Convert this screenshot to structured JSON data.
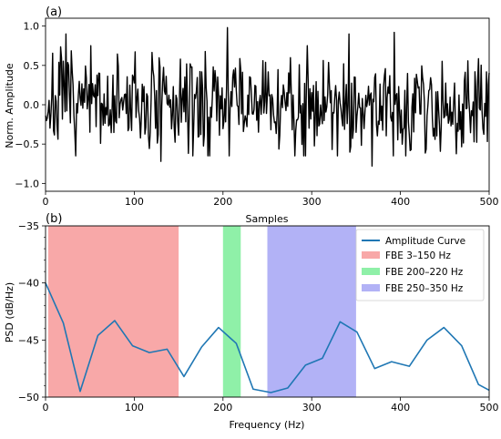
{
  "chart_data": [
    {
      "type": "line",
      "panel_label": "(a)",
      "xlabel": "Samples",
      "ylabel": "Norm. Amplitude",
      "xlim": [
        0,
        500
      ],
      "ylim": [
        -1.1,
        1.1
      ],
      "xticks": [
        0,
        100,
        200,
        300,
        400,
        500
      ],
      "yticks": [
        -1.0,
        -0.5,
        0.0,
        0.5,
        1.0
      ],
      "ytick_labels": [
        "−1.0",
        "−0.5",
        "0.0",
        "0.5",
        "1.0"
      ],
      "grid": false,
      "series": [
        {
          "color": "#000000",
          "seed": 7,
          "n_samples": 500,
          "notable_points": [
            {
              "x": 23,
              "y": 0.9
            },
            {
              "x": 130,
              "y": -0.72
            },
            {
              "x": 205,
              "y": 0.98
            },
            {
              "x": 295,
              "y": 0.75
            },
            {
              "x": 342,
              "y": 0.9
            },
            {
              "x": 368,
              "y": -0.78
            },
            {
              "x": 393,
              "y": 0.92
            }
          ]
        }
      ]
    },
    {
      "type": "line",
      "panel_label": "(b)",
      "xlabel": "Frequency (Hz)",
      "ylabel": "PSD (dB/Hz)",
      "xlim": [
        0,
        500
      ],
      "ylim": [
        -50,
        -35
      ],
      "xticks": [
        0,
        100,
        200,
        300,
        400,
        500
      ],
      "yticks": [
        -50,
        -45,
        -40,
        -35
      ],
      "ytick_labels": [
        "−50",
        "−45",
        "−40",
        "−35"
      ],
      "grid": false,
      "legend_position": "top-right",
      "bands": [
        {
          "name": "FBE 3–150 Hz",
          "range": [
            3,
            150
          ],
          "color": "#f8a8a8"
        },
        {
          "name": "FBE 200–220 Hz",
          "range": [
            200,
            220
          ],
          "color": "#8ff0a8"
        },
        {
          "name": "FBE 250–350 Hz",
          "range": [
            250,
            350
          ],
          "color": "#b2b2f6"
        }
      ],
      "series": [
        {
          "name": "Amplitude Curve",
          "color": "#1f77b4",
          "x": [
            0,
            20,
            39,
            59,
            78,
            98,
            117,
            137,
            156,
            176,
            195,
            215,
            234,
            254,
            273,
            293,
            312,
            332,
            351,
            371,
            390,
            410,
            430,
            449,
            469,
            488,
            500
          ],
          "y": [
            -40.0,
            -43.5,
            -49.5,
            -44.6,
            -43.3,
            -45.5,
            -46.1,
            -45.8,
            -48.2,
            -45.6,
            -43.9,
            -45.3,
            -49.3,
            -49.6,
            -49.2,
            -47.2,
            -46.6,
            -43.4,
            -44.3,
            -47.5,
            -46.9,
            -47.3,
            -45.0,
            -43.9,
            -45.5,
            -48.9,
            -49.4
          ]
        }
      ]
    }
  ]
}
